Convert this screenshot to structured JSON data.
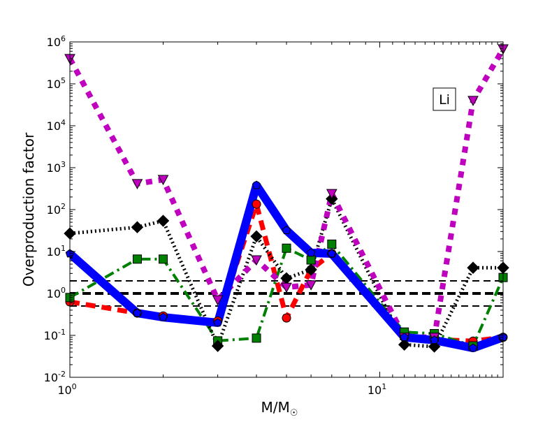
{
  "chart_data": {
    "type": "line",
    "title": "",
    "xlabel": "M/M",
    "xlabel_sub": "☉",
    "ylabel": "Overproduction factor",
    "xscale": "log",
    "yscale": "log",
    "xlim": [
      1,
      25
    ],
    "ylim": [
      0.01,
      1000000
    ],
    "x_ticks": [
      {
        "value": 1,
        "base": "10",
        "exp": "0"
      },
      {
        "value": 10,
        "base": "10",
        "exp": "1"
      }
    ],
    "y_ticks": [
      {
        "value": 0.01,
        "base": "10",
        "exp": "-2"
      },
      {
        "value": 0.1,
        "base": "10",
        "exp": "-1"
      },
      {
        "value": 1,
        "base": "10",
        "exp": "0"
      },
      {
        "value": 10,
        "base": "10",
        "exp": "1"
      },
      {
        "value": 100,
        "base": "10",
        "exp": "2"
      },
      {
        "value": 1000,
        "base": "10",
        "exp": "3"
      },
      {
        "value": 10000,
        "base": "10",
        "exp": "4"
      },
      {
        "value": 100000,
        "base": "10",
        "exp": "5"
      },
      {
        "value": 1000000,
        "base": "10",
        "exp": "6"
      }
    ],
    "annotation": "Li",
    "reference_lines": [
      {
        "value": 2,
        "style": "dashed"
      },
      {
        "value": 1,
        "style": "dashed-thick"
      },
      {
        "value": 0.5,
        "style": "dashed"
      }
    ],
    "x": [
      1,
      1.65,
      2,
      3,
      4,
      5,
      6,
      7,
      12,
      15,
      20,
      25
    ],
    "series": [
      {
        "name": "red-circles",
        "color": "#ff0000",
        "marker": "circle",
        "style": "dashed",
        "values": [
          0.63,
          0.34,
          0.29,
          0.22,
          135,
          0.26,
          3.7,
          9,
          0.09,
          0.08,
          0.073,
          0.09
        ]
      },
      {
        "name": "green-squares",
        "color": "#008000",
        "marker": "square",
        "style": "dashdot",
        "values": [
          0.8,
          6.6,
          6.6,
          0.074,
          0.086,
          12,
          6.3,
          15,
          0.12,
          0.11,
          0.056,
          2.4
        ]
      },
      {
        "name": "black-diamonds",
        "color": "#000000",
        "marker": "diamond",
        "style": "dotted",
        "values": [
          27,
          38,
          54,
          0.056,
          23,
          2.3,
          3.7,
          180,
          0.06,
          0.054,
          4.1,
          4.1
        ]
      },
      {
        "name": "magenta-triangles",
        "color": "#bf00bf",
        "marker": "triangle-down",
        "style": "dotted-thick",
        "values": [
          400000,
          415,
          520,
          0.7,
          6.3,
          1.4,
          1.6,
          240,
          0.09,
          0.09,
          40000,
          680000
        ]
      },
      {
        "name": "blue-pentagons",
        "color": "#0000ff",
        "marker": "pentagon",
        "style": "solid",
        "values": [
          8.9,
          0.34,
          0.27,
          0.2,
          380,
          32,
          9.3,
          8.9,
          0.09,
          0.077,
          0.05,
          0.09
        ]
      }
    ]
  }
}
